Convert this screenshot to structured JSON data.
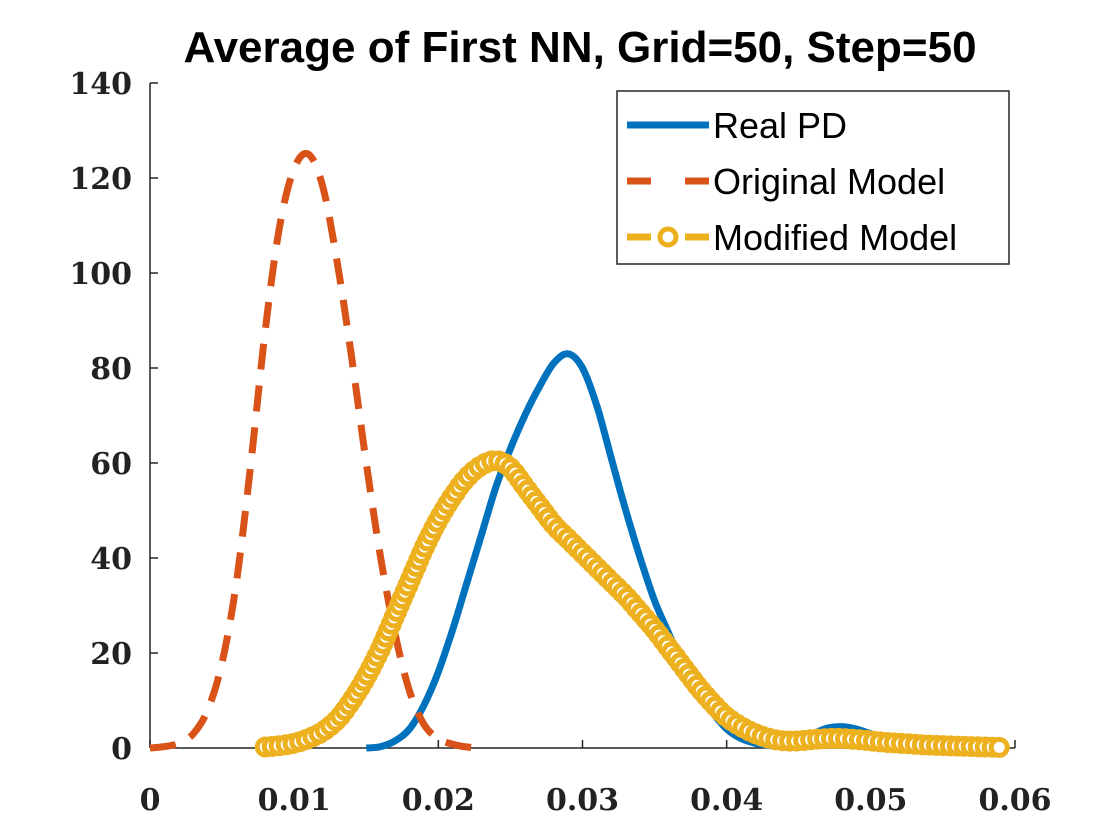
{
  "chart_data": {
    "type": "line",
    "title": "Average of First NN, Grid=50, Step=50",
    "xlabel": "",
    "ylabel": "",
    "xlim": [
      0,
      0.06
    ],
    "ylim": [
      0,
      140
    ],
    "xticks": [
      0,
      0.01,
      0.02,
      0.03,
      0.04,
      0.05,
      0.06
    ],
    "xtick_labels": [
      "0",
      "0.01",
      "0.02",
      "0.03",
      "0.04",
      "0.05",
      "0.06"
    ],
    "yticks": [
      0,
      20,
      40,
      60,
      80,
      100,
      120,
      140
    ],
    "ytick_labels": [
      "0",
      "20",
      "40",
      "60",
      "80",
      "100",
      "120",
      "140"
    ],
    "grid": false,
    "legend_position": "top-right",
    "series": [
      {
        "name": "Real PD",
        "color": "#0072BD",
        "style": "solid",
        "x": [
          0.015,
          0.016,
          0.017,
          0.018,
          0.019,
          0.02,
          0.021,
          0.022,
          0.023,
          0.024,
          0.025,
          0.026,
          0.027,
          0.028,
          0.029,
          0.03,
          0.031,
          0.032,
          0.033,
          0.034,
          0.035,
          0.036,
          0.037,
          0.038,
          0.039,
          0.04,
          0.041,
          0.042,
          0.043,
          0.044,
          0.045,
          0.046,
          0.047,
          0.048,
          0.049,
          0.05,
          0.051,
          0.052
        ],
        "y": [
          0,
          0.3,
          1.5,
          4,
          9,
          16,
          25,
          35,
          45,
          55,
          63,
          70,
          76,
          81,
          83,
          80,
          72,
          61,
          50,
          40,
          31,
          24,
          17,
          12,
          7.5,
          4,
          2,
          1,
          0.5,
          0.5,
          1.5,
          3,
          4.2,
          4.5,
          4,
          3,
          2,
          1.5
        ]
      },
      {
        "name": "Original Model",
        "color": "#D95319",
        "style": "dashed",
        "x": [
          0,
          0.001,
          0.002,
          0.003,
          0.004,
          0.005,
          0.006,
          0.007,
          0.008,
          0.009,
          0.01,
          0.011,
          0.012,
          0.013,
          0.014,
          0.015,
          0.016,
          0.017,
          0.018,
          0.019,
          0.02,
          0.021,
          0.022,
          0.023
        ],
        "y": [
          0,
          0.3,
          1,
          3,
          8,
          18,
          35,
          60,
          88,
          110,
          122,
          125,
          118,
          102,
          82,
          60,
          40,
          24,
          12,
          5,
          2,
          0.8,
          0.2,
          0
        ]
      },
      {
        "name": "Modified Model",
        "color": "#EDB120",
        "style": "dashed-circles",
        "x": [
          0.008,
          0.009,
          0.01,
          0.011,
          0.012,
          0.013,
          0.014,
          0.015,
          0.016,
          0.017,
          0.018,
          0.019,
          0.02,
          0.021,
          0.022,
          0.023,
          0.024,
          0.025,
          0.026,
          0.027,
          0.028,
          0.029,
          0.03,
          0.031,
          0.032,
          0.033,
          0.034,
          0.035,
          0.036,
          0.037,
          0.038,
          0.039,
          0.04,
          0.041,
          0.042,
          0.043,
          0.044,
          0.045,
          0.046,
          0.047,
          0.048,
          0.049,
          0.05,
          0.051,
          0.052,
          0.053,
          0.054,
          0.055,
          0.056,
          0.057,
          0.058,
          0.059
        ],
        "y": [
          0.2,
          0.5,
          1,
          2,
          3.5,
          6,
          10,
          15,
          21,
          28,
          35,
          42,
          48,
          53,
          57,
          59.5,
          60.5,
          59,
          55,
          51,
          47,
          44,
          41,
          38,
          35,
          32,
          28.5,
          25,
          21,
          17,
          13,
          9.5,
          6.5,
          4.5,
          3,
          2,
          1.5,
          1.5,
          1.8,
          2,
          2,
          1.8,
          1.5,
          1.2,
          1,
          0.8,
          0.6,
          0.5,
          0.4,
          0.3,
          0.2,
          0.1
        ]
      }
    ]
  }
}
